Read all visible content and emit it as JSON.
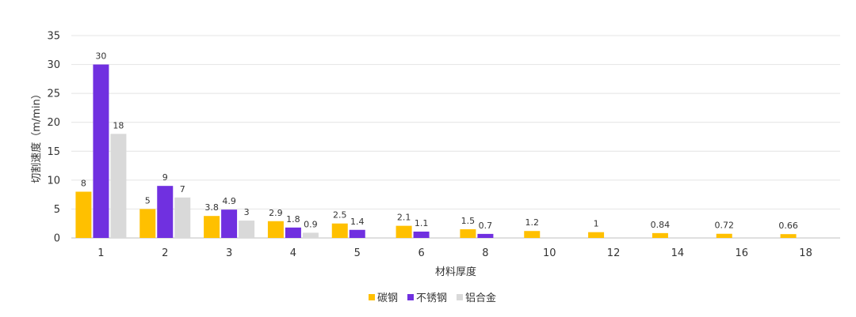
{
  "chart_data": {
    "type": "bar",
    "xlabel": "材料厚度",
    "ylabel": "切割速度（m/min）",
    "ylim": [
      0,
      35
    ],
    "yticks": [
      0,
      5,
      10,
      15,
      20,
      25,
      30,
      35
    ],
    "grid": true,
    "legend_position": "bottom",
    "categories": [
      "1",
      "2",
      "3",
      "4",
      "5",
      "6",
      "8",
      "10",
      "12",
      "14",
      "16",
      "18"
    ],
    "series": [
      {
        "name": "碳钢",
        "color": "#FFC000",
        "values": [
          8,
          5,
          3.8,
          2.9,
          2.5,
          2.1,
          1.5,
          1.2,
          1,
          0.84,
          0.72,
          0.66
        ]
      },
      {
        "name": "不锈钢",
        "color": "#7030E0",
        "values": [
          30,
          9,
          4.9,
          1.8,
          1.4,
          1.1,
          0.7,
          null,
          null,
          null,
          null,
          null
        ]
      },
      {
        "name": "铝合金",
        "color": "#D9D9D9",
        "values": [
          18,
          7,
          3,
          0.9,
          null,
          null,
          null,
          null,
          null,
          null,
          null,
          null
        ]
      }
    ]
  }
}
